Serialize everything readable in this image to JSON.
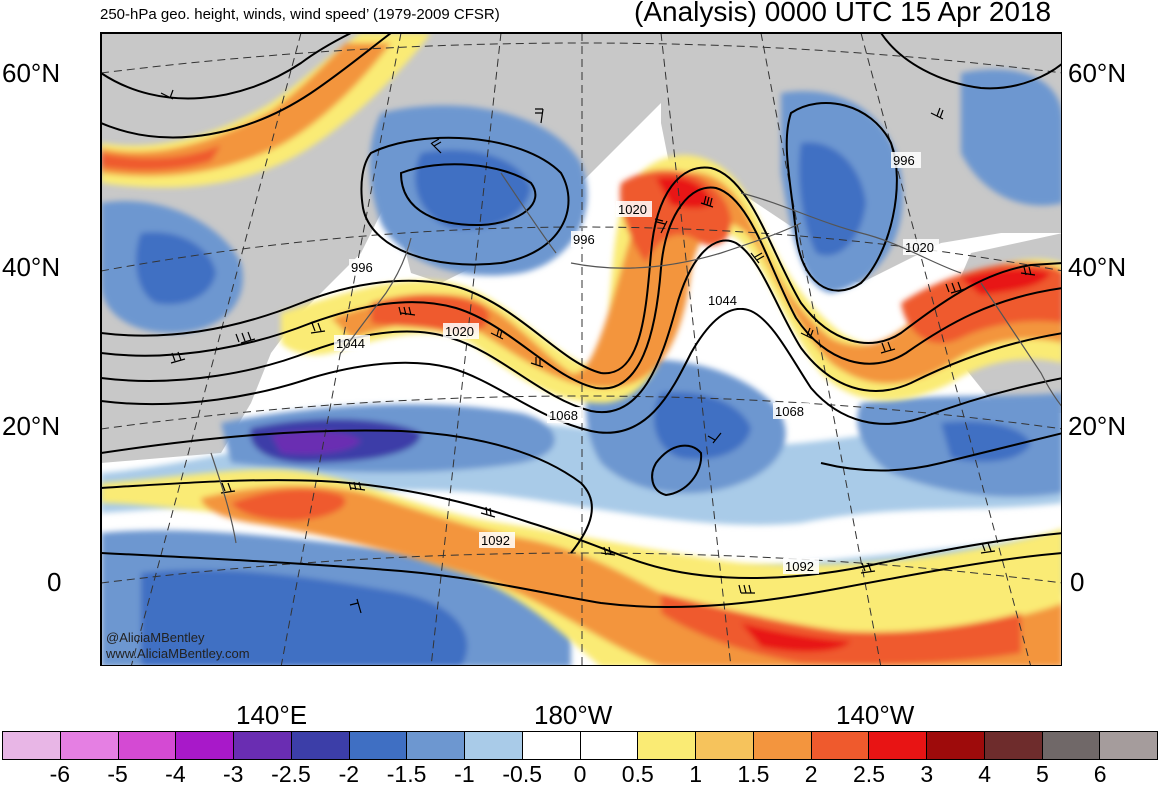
{
  "title": {
    "left": "250-hPa geo. height, winds, wind speed’ (1979-2009 CFSR)",
    "right": "(Analysis) 0000 UTC 15 Apr 2018"
  },
  "lat_labels": [
    "60°N",
    "40°N",
    "20°N",
    "0"
  ],
  "lon_labels": [
    "140°E",
    "180°W",
    "140°W"
  ],
  "credit": {
    "handle": "@AliciaMBentley",
    "url": "www.AliciaMBentley.com"
  },
  "contour_labels": [
    "996",
    "1044",
    "1020",
    "1020",
    "996",
    "1044",
    "1068",
    "1068",
    "1092",
    "1092",
    "996",
    "1020"
  ],
  "colorbar": {
    "colors": [
      "#e8b6e6",
      "#e57fe3",
      "#d44ad3",
      "#a819c9",
      "#6a2db2",
      "#3c3ea8",
      "#3f6fc3",
      "#6d97d0",
      "#a9cbe8",
      "#ffffff",
      "#ffffff",
      "#faeb74",
      "#f6c35c",
      "#f3953e",
      "#ef5a2d",
      "#e81414",
      "#9e0b0b",
      "#6e2c2c",
      "#706868",
      "#a59c9c"
    ],
    "labels": [
      "-6",
      "-5",
      "-4",
      "-3",
      "-2.5",
      "-2",
      "-1.5",
      "-1",
      "-0.5",
      "0",
      "0.5",
      "1",
      "1.5",
      "2",
      "2.5",
      "3",
      "4",
      "5",
      "6"
    ]
  },
  "colors": {
    "land": "#c8c8c8",
    "neg_light": "#a9cbe8",
    "neg_mid": "#6d97d0",
    "neg_dark": "#3f6fc3",
    "neg_darker": "#3c3ea8",
    "neg_darkest": "#6a2db2",
    "pos_yellow": "#faeb74",
    "pos_orange": "#f3953e",
    "pos_red": "#ef5a2d",
    "pos_darkred": "#e81414"
  }
}
